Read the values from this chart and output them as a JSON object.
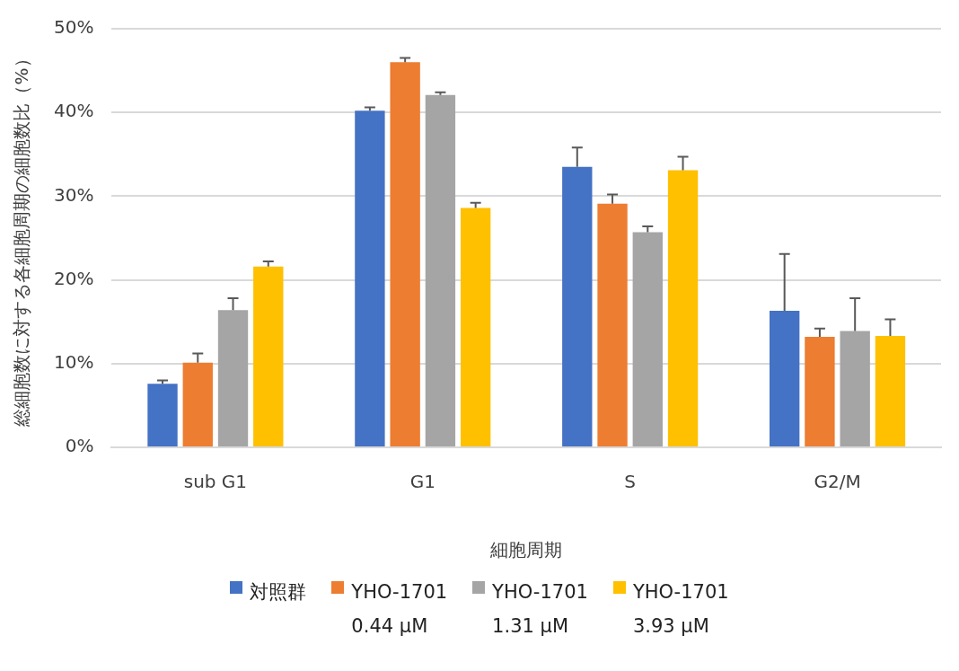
{
  "chart_data": {
    "type": "bar",
    "xlabel": "細胞周期",
    "ylabel": "総細胞数に対する各細胞周期の細胞数比（%）",
    "categories": [
      "sub G1",
      "G1",
      "S",
      "G2/M"
    ],
    "series": [
      {
        "name": "対照群",
        "color": "#4472c4",
        "values": [
          7.6,
          40.2,
          33.5,
          16.3
        ],
        "errors": [
          [
            7.6,
            8.0
          ],
          [
            40.2,
            40.6
          ],
          [
            33.5,
            35.8
          ],
          [
            16.3,
            23.1
          ]
        ]
      },
      {
        "name": "YHO-1701 0.44 μM",
        "color": "#ed7d31",
        "values": [
          10.1,
          46.0,
          29.1,
          13.2
        ],
        "errors": [
          [
            10.1,
            11.2
          ],
          [
            46.0,
            46.5
          ],
          [
            29.1,
            30.2
          ],
          [
            13.2,
            14.2
          ]
        ]
      },
      {
        "name": "YHO-1701 1.31 μM",
        "color": "#a5a5a5",
        "values": [
          16.4,
          42.1,
          25.7,
          13.9
        ],
        "errors": [
          [
            16.4,
            17.8
          ],
          [
            42.1,
            42.4
          ],
          [
            25.7,
            26.4
          ],
          [
            13.9,
            17.8
          ]
        ]
      },
      {
        "name": "YHO-1701 3.93 μM",
        "color": "#ffc000",
        "values": [
          21.6,
          28.6,
          33.1,
          13.3
        ],
        "errors": [
          [
            21.6,
            22.2
          ],
          [
            28.6,
            29.2
          ],
          [
            33.1,
            34.7
          ],
          [
            13.3,
            15.3
          ]
        ]
      }
    ],
    "ylim": [
      0,
      50
    ],
    "yticks": [
      {
        "value": 0,
        "label": "0%"
      },
      {
        "value": 10,
        "label": "10%"
      },
      {
        "value": 20,
        "label": "20%"
      },
      {
        "value": 30,
        "label": "30%"
      },
      {
        "value": 40,
        "label": "40%"
      },
      {
        "value": 50,
        "label": "50%"
      }
    ],
    "grid": "y",
    "legend": "bottom"
  }
}
